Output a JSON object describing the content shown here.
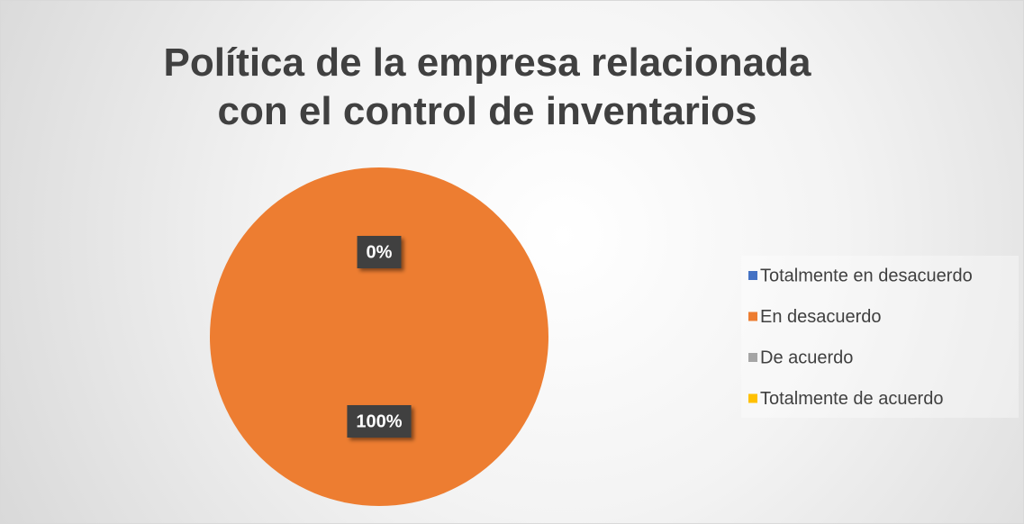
{
  "chart_data": {
    "type": "pie",
    "title": "Política de la empresa relacionada con el control de inventarios",
    "categories": [
      "Totalmente en desacuerdo",
      "En desacuerdo",
      "De acuerdo",
      "Totalmente de acuerdo"
    ],
    "values": [
      0,
      100,
      0,
      0
    ],
    "value_labels": [
      "0%",
      "100%",
      null,
      null
    ],
    "colors": [
      "#4472c4",
      "#ed7d31",
      "#a5a5a5",
      "#ffc000"
    ],
    "legend": "right"
  }
}
